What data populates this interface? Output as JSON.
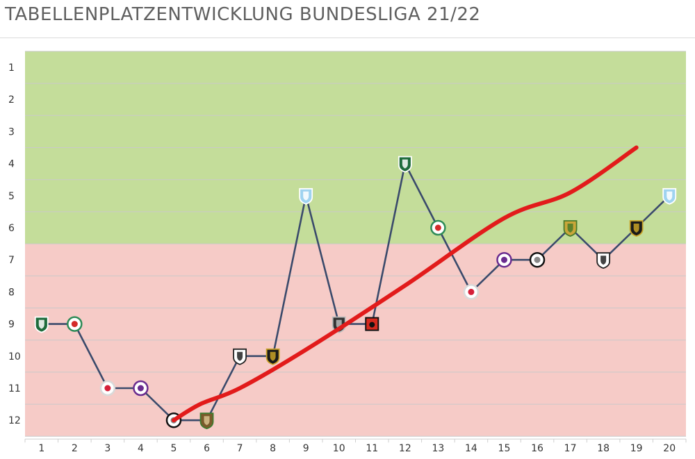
{
  "title": "TABELLENPLATZENTWICKLUNG BUNDESLIGA 21/22",
  "chart_data": {
    "type": "line",
    "x": [
      1,
      2,
      3,
      4,
      5,
      6,
      7,
      8,
      9,
      10,
      11,
      12,
      13,
      14,
      15,
      16,
      17,
      18,
      19,
      20
    ],
    "series": [
      {
        "values": [
          9,
          9,
          11,
          11,
          12,
          12,
          10,
          10,
          5,
          9,
          9,
          4,
          6,
          8,
          7,
          7,
          6,
          7,
          6,
          5
        ],
        "color": "#3a4a6b"
      }
    ],
    "trend": {
      "x": [
        5,
        5.8,
        7,
        9,
        12,
        15,
        17,
        19
      ],
      "y": [
        12,
        11.5,
        11,
        9.8,
        7.8,
        5.7,
        4.9,
        3.5
      ],
      "color": "#e21b1b"
    },
    "markers": [
      "team-logo-green-white",
      "team-logo-white-green-red",
      "team-logo-redbull",
      "team-logo-violet-ring",
      "team-logo-black-white-ring",
      "team-logo-brown-green",
      "team-logo-black-white-stripes",
      "team-logo-black-gold",
      "team-logo-lightblue",
      "team-logo-black-grey",
      "team-logo-red-black-square",
      "team-logo-green-white",
      "team-logo-white-green-red",
      "team-logo-redbull",
      "team-logo-violet-ring",
      "team-logo-black-white-ring",
      "team-logo-gold-green",
      "team-logo-black-white-stripes",
      "team-logo-black-gold",
      "team-logo-lightblue"
    ],
    "ylim": [
      1,
      12
    ],
    "y_reversed": true,
    "yticks": [
      "1",
      "2",
      "3",
      "4",
      "5",
      "6",
      "7",
      "8",
      "9",
      "10",
      "11",
      "12"
    ],
    "xticks": [
      "1",
      "2",
      "3",
      "4",
      "5",
      "6",
      "7",
      "8",
      "9",
      "10",
      "11",
      "12",
      "13",
      "14",
      "15",
      "16",
      "17",
      "18",
      "19",
      "20"
    ],
    "bands": [
      {
        "from": 0.5,
        "to": 6.5,
        "color": "#c4dd9a"
      },
      {
        "from": 6.5,
        "to": 12.5,
        "color": "#f6cbc7"
      }
    ],
    "grid": true,
    "xlabel": "",
    "ylabel": ""
  }
}
